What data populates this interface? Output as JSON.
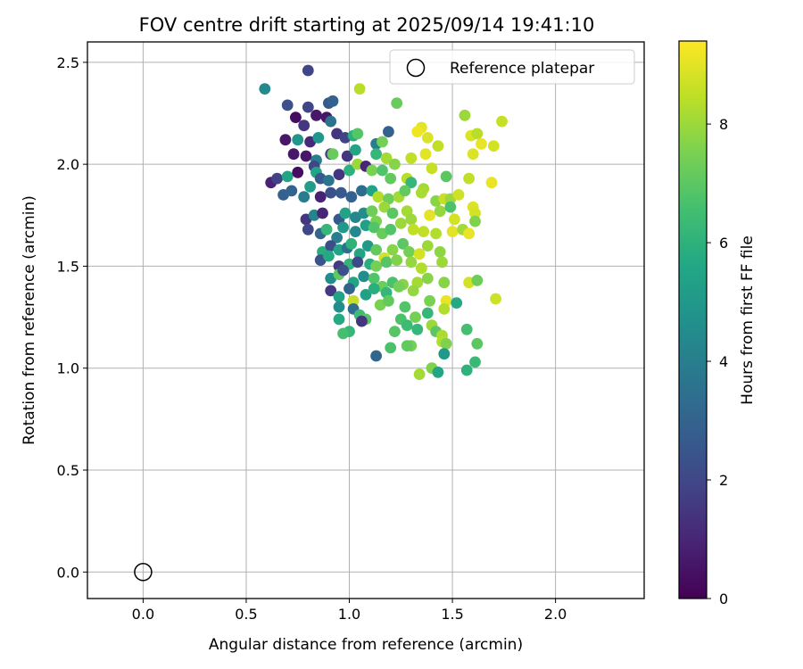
{
  "chart_data": {
    "type": "scatter",
    "title": "FOV centre drift starting at 2025/09/14 19:41:10",
    "xlabel": "Angular distance from reference (arcmin)",
    "ylabel": "Rotation from reference (arcmin)",
    "xlim": [
      -0.27,
      2.43
    ],
    "ylim": [
      -0.13,
      2.6
    ],
    "xticks": [
      0.0,
      0.5,
      1.0,
      1.5,
      2.0
    ],
    "xtick_labels": [
      "0.0",
      "0.5",
      "1.0",
      "1.5",
      "2.0"
    ],
    "yticks": [
      0.0,
      0.5,
      1.0,
      1.5,
      2.0,
      2.5
    ],
    "ytick_labels": [
      "0.0",
      "0.5",
      "1.0",
      "1.5",
      "2.0",
      "2.5"
    ],
    "grid": true,
    "legend": {
      "position": "top-right",
      "label": "Reference platepar"
    },
    "reference_point": {
      "x": 0.0,
      "y": 0.0
    },
    "colorbar": {
      "label": "Hours from first FF file",
      "colormap": "viridis",
      "range": [
        0,
        9.4
      ],
      "ticks": [
        0,
        2,
        4,
        6,
        8
      ],
      "tick_labels": [
        "0",
        "2",
        "4",
        "6",
        "8"
      ]
    },
    "points": [
      [
        0.8,
        2.46,
        1.9
      ],
      [
        0.59,
        2.37,
        4.4
      ],
      [
        0.7,
        2.29,
        2.3
      ],
      [
        0.8,
        2.28,
        1.9
      ],
      [
        0.9,
        2.3,
        2.6
      ],
      [
        0.92,
        2.31,
        2.9
      ],
      [
        1.05,
        2.37,
        8.4
      ],
      [
        1.23,
        2.3,
        7.2
      ],
      [
        0.74,
        2.23,
        0.3
      ],
      [
        0.84,
        2.24,
        0.6
      ],
      [
        0.89,
        2.23,
        0.6
      ],
      [
        0.91,
        2.21,
        3.6
      ],
      [
        0.78,
        2.19,
        1.5
      ],
      [
        1.35,
        2.18,
        9.0
      ],
      [
        1.33,
        2.16,
        9.2
      ],
      [
        1.56,
        2.24,
        8.0
      ],
      [
        1.74,
        2.21,
        8.6
      ],
      [
        0.69,
        2.12,
        0.6
      ],
      [
        0.81,
        2.11,
        1.1
      ],
      [
        0.75,
        2.12,
        4.9
      ],
      [
        0.85,
        2.13,
        4.9
      ],
      [
        0.94,
        2.15,
        1.4
      ],
      [
        0.98,
        2.13,
        1.9
      ],
      [
        1.02,
        2.14,
        5.9
      ],
      [
        1.04,
        2.15,
        6.9
      ],
      [
        1.19,
        2.16,
        2.9
      ],
      [
        1.13,
        2.1,
        4.0
      ],
      [
        1.16,
        2.11,
        7.4
      ],
      [
        1.38,
        2.13,
        8.9
      ],
      [
        1.43,
        2.09,
        8.5
      ],
      [
        1.59,
        2.14,
        8.9
      ],
      [
        1.62,
        2.15,
        8.4
      ],
      [
        1.64,
        2.1,
        9.1
      ],
      [
        1.7,
        2.09,
        8.8
      ],
      [
        0.73,
        2.05,
        0.6
      ],
      [
        0.79,
        2.04,
        0.6
      ],
      [
        0.84,
        2.02,
        4.0
      ],
      [
        0.91,
        2.05,
        1.8
      ],
      [
        0.92,
        2.05,
        7.2
      ],
      [
        0.99,
        2.04,
        1.5
      ],
      [
        1.03,
        2.07,
        5.5
      ],
      [
        1.13,
        2.05,
        6.2
      ],
      [
        1.18,
        2.03,
        8.1
      ],
      [
        1.22,
        2.0,
        7.7
      ],
      [
        1.3,
        2.03,
        8.5
      ],
      [
        1.37,
        2.05,
        9.0
      ],
      [
        1.4,
        1.98,
        8.6
      ],
      [
        1.6,
        2.05,
        8.9
      ],
      [
        0.62,
        1.91,
        0.9
      ],
      [
        0.65,
        1.93,
        1.8
      ],
      [
        0.7,
        1.94,
        5.5
      ],
      [
        0.75,
        1.96,
        0.3
      ],
      [
        0.83,
        1.99,
        2.0
      ],
      [
        0.84,
        1.96,
        5.5
      ],
      [
        0.86,
        1.93,
        2.6
      ],
      [
        0.9,
        1.92,
        3.6
      ],
      [
        0.95,
        1.95,
        1.4
      ],
      [
        1.0,
        1.97,
        6.0
      ],
      [
        1.04,
        2.0,
        8.0
      ],
      [
        1.08,
        1.99,
        1.0
      ],
      [
        1.11,
        1.97,
        7.5
      ],
      [
        1.16,
        1.97,
        6.8
      ],
      [
        1.2,
        1.93,
        7.1
      ],
      [
        1.28,
        1.93,
        8.4
      ],
      [
        1.3,
        1.91,
        6.2
      ],
      [
        1.36,
        1.88,
        8.1
      ],
      [
        1.47,
        1.94,
        7.0
      ],
      [
        1.58,
        1.93,
        8.5
      ],
      [
        1.69,
        1.91,
        9.1
      ],
      [
        0.68,
        1.85,
        2.9
      ],
      [
        0.72,
        1.87,
        3.0
      ],
      [
        0.78,
        1.84,
        3.9
      ],
      [
        0.81,
        1.89,
        5.2
      ],
      [
        0.86,
        1.84,
        0.9
      ],
      [
        0.91,
        1.86,
        2.3
      ],
      [
        0.96,
        1.86,
        2.6
      ],
      [
        1.01,
        1.84,
        2.9
      ],
      [
        1.06,
        1.87,
        3.3
      ],
      [
        1.11,
        1.87,
        5.4
      ],
      [
        1.14,
        1.84,
        8.3
      ],
      [
        1.19,
        1.83,
        7.3
      ],
      [
        1.24,
        1.84,
        8.1
      ],
      [
        1.27,
        1.87,
        7.1
      ],
      [
        1.35,
        1.86,
        8.2
      ],
      [
        1.42,
        1.82,
        7.7
      ],
      [
        1.46,
        1.83,
        8.6
      ],
      [
        1.49,
        1.83,
        8.0
      ],
      [
        1.53,
        1.85,
        8.7
      ],
      [
        1.6,
        1.79,
        8.9
      ],
      [
        0.79,
        1.73,
        1.5
      ],
      [
        0.83,
        1.75,
        4.2
      ],
      [
        0.87,
        1.76,
        1.0
      ],
      [
        0.95,
        1.73,
        2.6
      ],
      [
        0.98,
        1.76,
        5.4
      ],
      [
        1.03,
        1.74,
        4.3
      ],
      [
        1.07,
        1.76,
        4.5
      ],
      [
        1.11,
        1.77,
        7.3
      ],
      [
        1.13,
        1.72,
        7.5
      ],
      [
        1.17,
        1.79,
        8.0
      ],
      [
        1.21,
        1.76,
        7.0
      ],
      [
        1.28,
        1.77,
        8.1
      ],
      [
        1.3,
        1.73,
        8.0
      ],
      [
        1.39,
        1.75,
        9.0
      ],
      [
        1.44,
        1.77,
        7.9
      ],
      [
        1.49,
        1.79,
        6.7
      ],
      [
        1.51,
        1.73,
        8.8
      ],
      [
        1.61,
        1.76,
        8.8
      ],
      [
        1.61,
        1.72,
        7.6
      ],
      [
        0.8,
        1.68,
        2.0
      ],
      [
        0.86,
        1.66,
        3.1
      ],
      [
        0.89,
        1.68,
        6.2
      ],
      [
        0.94,
        1.64,
        4.0
      ],
      [
        0.97,
        1.69,
        5.0
      ],
      [
        1.03,
        1.67,
        4.4
      ],
      [
        1.08,
        1.7,
        5.3
      ],
      [
        1.12,
        1.69,
        6.8
      ],
      [
        1.16,
        1.66,
        7.2
      ],
      [
        1.2,
        1.68,
        6.8
      ],
      [
        1.25,
        1.71,
        8.0
      ],
      [
        1.31,
        1.68,
        8.5
      ],
      [
        1.36,
        1.67,
        8.5
      ],
      [
        1.42,
        1.66,
        8.3
      ],
      [
        1.5,
        1.67,
        9.0
      ],
      [
        1.55,
        1.68,
        8.1
      ],
      [
        1.58,
        1.66,
        9.1
      ],
      [
        0.87,
        1.57,
        5.9
      ],
      [
        0.91,
        1.6,
        2.2
      ],
      [
        0.95,
        1.58,
        5.4
      ],
      [
        0.99,
        1.59,
        3.5
      ],
      [
        1.01,
        1.61,
        6.0
      ],
      [
        1.05,
        1.56,
        5.5
      ],
      [
        1.09,
        1.6,
        5.0
      ],
      [
        1.13,
        1.58,
        7.1
      ],
      [
        1.17,
        1.54,
        8.8
      ],
      [
        1.21,
        1.58,
        7.7
      ],
      [
        1.26,
        1.61,
        7.0
      ],
      [
        1.29,
        1.57,
        7.4
      ],
      [
        1.34,
        1.56,
        8.8
      ],
      [
        1.38,
        1.6,
        8.0
      ],
      [
        1.44,
        1.57,
        7.8
      ],
      [
        0.86,
        1.53,
        2.4
      ],
      [
        0.9,
        1.55,
        5.7
      ],
      [
        0.95,
        1.5,
        1.6
      ],
      [
        1.0,
        1.51,
        6.1
      ],
      [
        1.04,
        1.52,
        2.1
      ],
      [
        1.1,
        1.51,
        5.9
      ],
      [
        1.13,
        1.5,
        7.4
      ],
      [
        1.18,
        1.52,
        6.9
      ],
      [
        1.23,
        1.53,
        7.6
      ],
      [
        1.3,
        1.52,
        7.9
      ],
      [
        1.35,
        1.49,
        8.3
      ],
      [
        1.45,
        1.52,
        8.0
      ],
      [
        0.91,
        1.44,
        4.6
      ],
      [
        0.95,
        1.46,
        7.1
      ],
      [
        0.97,
        1.48,
        2.3
      ],
      [
        1.02,
        1.42,
        5.5
      ],
      [
        1.07,
        1.45,
        4.5
      ],
      [
        1.12,
        1.44,
        6.8
      ],
      [
        1.16,
        1.4,
        7.3
      ],
      [
        1.21,
        1.42,
        6.7
      ],
      [
        1.26,
        1.41,
        7.7
      ],
      [
        1.33,
        1.42,
        8.1
      ],
      [
        1.38,
        1.44,
        7.7
      ],
      [
        1.46,
        1.42,
        7.7
      ],
      [
        1.58,
        1.42,
        8.8
      ],
      [
        1.62,
        1.43,
        7.3
      ],
      [
        0.91,
        1.38,
        1.6
      ],
      [
        0.95,
        1.35,
        5.4
      ],
      [
        1.0,
        1.39,
        3.0
      ],
      [
        1.02,
        1.33,
        8.6
      ],
      [
        1.08,
        1.36,
        5.3
      ],
      [
        1.12,
        1.39,
        5.9
      ],
      [
        1.18,
        1.37,
        6.2
      ],
      [
        1.24,
        1.4,
        7.4
      ],
      [
        1.31,
        1.38,
        7.9
      ],
      [
        1.39,
        1.33,
        7.5
      ],
      [
        1.47,
        1.33,
        9.1
      ],
      [
        1.52,
        1.32,
        5.7
      ],
      [
        1.71,
        1.34,
        8.7
      ],
      [
        0.95,
        1.3,
        4.6
      ],
      [
        1.02,
        1.29,
        3.3
      ],
      [
        1.05,
        1.26,
        6.4
      ],
      [
        1.08,
        1.24,
        6.9
      ],
      [
        1.15,
        1.31,
        7.5
      ],
      [
        1.19,
        1.33,
        7.1
      ],
      [
        1.27,
        1.3,
        6.8
      ],
      [
        1.32,
        1.25,
        7.4
      ],
      [
        1.38,
        1.27,
        6.2
      ],
      [
        1.46,
        1.29,
        8.3
      ],
      [
        0.95,
        1.24,
        5.7
      ],
      [
        1.06,
        1.23,
        1.4
      ],
      [
        1.25,
        1.24,
        6.7
      ],
      [
        1.28,
        1.21,
        6.4
      ],
      [
        1.33,
        1.19,
        6.2
      ],
      [
        1.4,
        1.21,
        8.0
      ],
      [
        1.42,
        1.18,
        7.0
      ],
      [
        1.45,
        1.16,
        8.2
      ],
      [
        1.57,
        1.19,
        6.6
      ],
      [
        1.0,
        1.18,
        6.2
      ],
      [
        0.97,
        1.17,
        6.6
      ],
      [
        1.22,
        1.18,
        6.9
      ],
      [
        1.3,
        1.11,
        7.4
      ],
      [
        1.45,
        1.13,
        8.3
      ],
      [
        1.47,
        1.12,
        7.6
      ],
      [
        1.62,
        1.12,
        7.0
      ],
      [
        1.13,
        1.06,
        3.1
      ],
      [
        1.2,
        1.1,
        6.7
      ],
      [
        1.28,
        1.11,
        7.1
      ],
      [
        1.46,
        1.07,
        5.0
      ],
      [
        1.4,
        1.0,
        7.6
      ],
      [
        1.43,
        0.98,
        5.5
      ],
      [
        1.34,
        0.97,
        8.1
      ],
      [
        1.57,
        0.99,
        6.0
      ],
      [
        1.61,
        1.03,
        6.3
      ]
    ]
  }
}
